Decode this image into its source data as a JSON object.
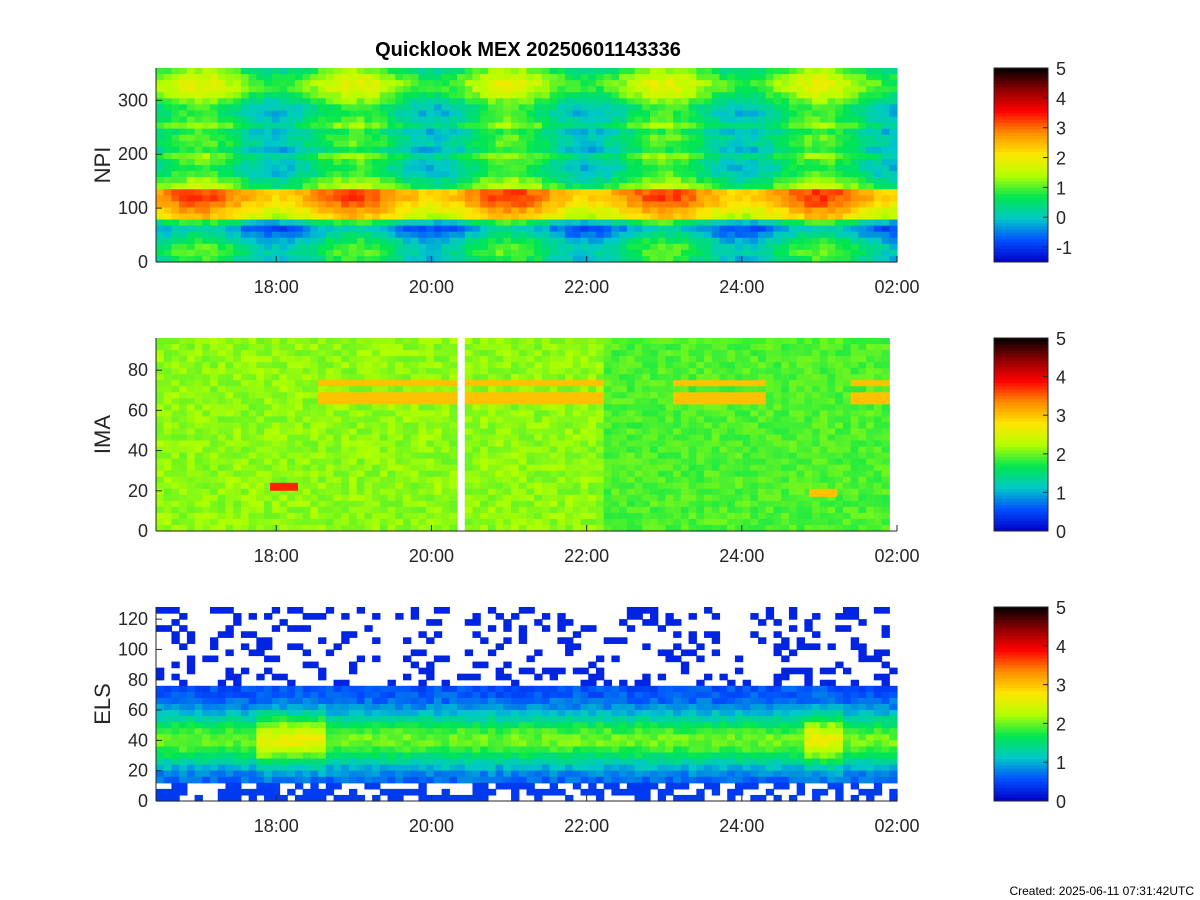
{
  "figure": {
    "title": "Quicklook MEX 20250601143336",
    "footer": "Created: 2025-06-11 07:31:42UTC"
  },
  "colors": {
    "background": "#ffffff",
    "axis": "#262626",
    "colormap": [
      "#0000c8",
      "#0050ff",
      "#00c8c8",
      "#00e650",
      "#b4ff00",
      "#ffe600",
      "#ff8c00",
      "#ff0000",
      "#8c0000",
      "#000000"
    ]
  },
  "chart_data": [
    {
      "type": "heatmap",
      "name": "npi",
      "title": "Quicklook MEX 20250601143336",
      "ylabel": "NPI",
      "ylim": [
        0,
        360
      ],
      "yticks": [
        "0",
        "100",
        "200",
        "300"
      ],
      "ytick_values": [
        0,
        100,
        200,
        300
      ],
      "xlim": [
        16.45,
        26.0
      ],
      "xticks": [
        "18:00",
        "20:00",
        "22:00",
        "24:00",
        "02:00"
      ],
      "xtick_values": [
        18,
        20,
        22,
        24,
        26
      ],
      "colorbar": {
        "range": [
          -1.5,
          5
        ],
        "ticks": [
          "-1",
          "0",
          "1",
          "2",
          "3",
          "4",
          "5"
        ],
        "tick_values": [
          -1,
          0,
          1,
          2,
          3,
          4,
          5
        ]
      }
    },
    {
      "type": "heatmap",
      "name": "ima",
      "ylabel": "IMA",
      "ylim": [
        0,
        96
      ],
      "yticks": [
        "0",
        "20",
        "40",
        "60",
        "80"
      ],
      "ytick_values": [
        0,
        20,
        40,
        60,
        80
      ],
      "xlim": [
        16.45,
        26.0
      ],
      "xticks": [
        "18:00",
        "20:00",
        "22:00",
        "24:00",
        "02:00"
      ],
      "xtick_values": [
        18,
        20,
        22,
        24,
        26
      ],
      "colorbar": {
        "range": [
          0,
          5
        ],
        "ticks": [
          "0",
          "1",
          "2",
          "3",
          "4",
          "5"
        ],
        "tick_values": [
          0,
          1,
          2,
          3,
          4,
          5
        ]
      }
    },
    {
      "type": "heatmap",
      "name": "els",
      "ylabel": "ELS",
      "ylim": [
        0,
        128
      ],
      "yticks": [
        "0",
        "20",
        "40",
        "60",
        "80",
        "100",
        "120"
      ],
      "ytick_values": [
        0,
        20,
        40,
        60,
        80,
        100,
        120
      ],
      "xlim": [
        16.45,
        26.0
      ],
      "xticks": [
        "18:00",
        "20:00",
        "22:00",
        "24:00",
        "02:00"
      ],
      "xtick_values": [
        18,
        20,
        22,
        24,
        26
      ],
      "colorbar": {
        "range": [
          0,
          5
        ],
        "ticks": [
          "0",
          "1",
          "2",
          "3",
          "4",
          "5"
        ],
        "tick_values": [
          0,
          1,
          2,
          3,
          4,
          5
        ]
      }
    }
  ]
}
